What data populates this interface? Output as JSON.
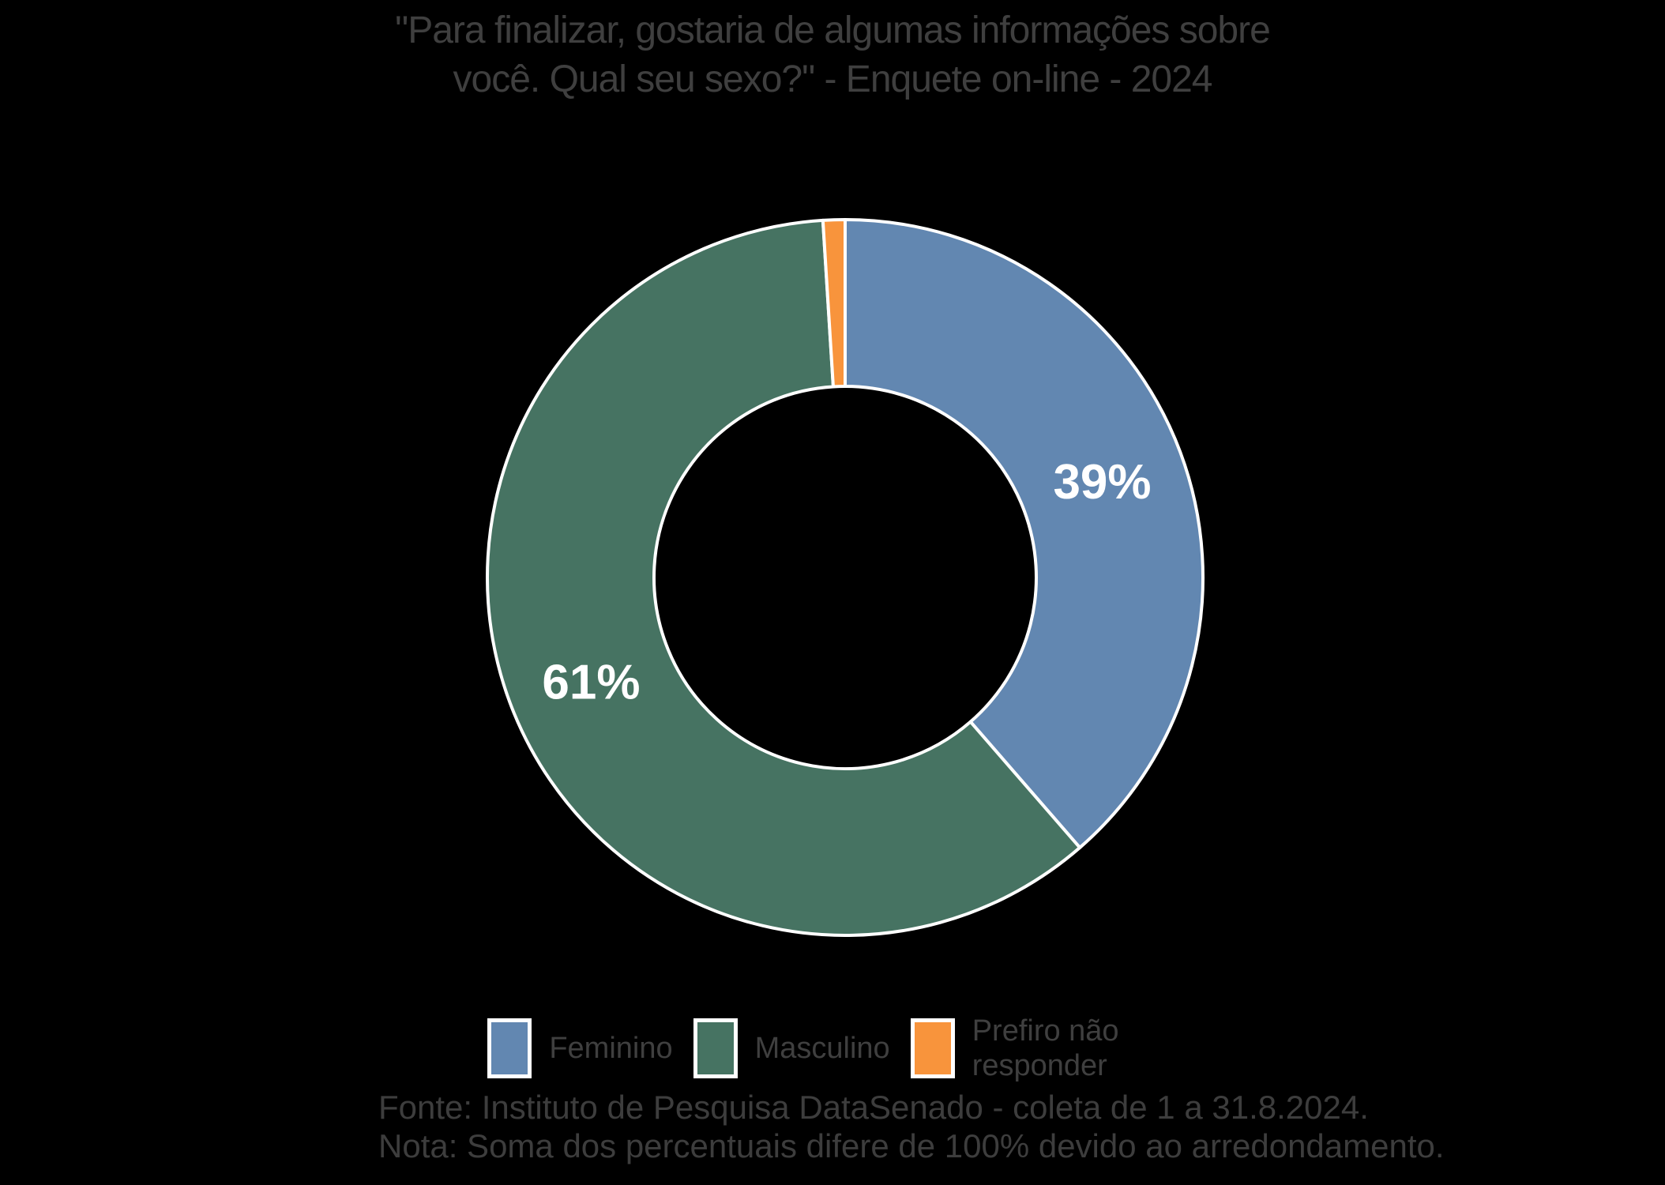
{
  "page": {
    "background": "#000000"
  },
  "title": {
    "text": "\"Para finalizar, gostaria de algumas informações sobre você. Qual seu sexo?\" - Enquete on-line - 2024",
    "color": "#3F3F3F"
  },
  "chart_data": {
    "type": "pie",
    "subtype": "donut",
    "title": "\"Para finalizar, gostaria de algumas informações sobre você. Qual seu sexo?\" - Enquete on-line - 2024",
    "categories": [
      "Feminino",
      "Masculino",
      "Prefiro não responder"
    ],
    "values": [
      39,
      61,
      1
    ],
    "unit": "%",
    "data_labels": [
      "39%",
      "61%",
      ""
    ],
    "colors": [
      "#6287B1",
      "#467362",
      "#F8943C"
    ],
    "slice_border_color": "#FFFFFF",
    "data_label_color": "#FFFFFF",
    "hole_ratio": 0.53,
    "start_position": "12-oclock",
    "direction": "clockwise",
    "legend_position": "bottom",
    "min_pct_for_label": 5
  },
  "legend": {
    "items": [
      {
        "label": "Feminino",
        "color": "#6287B1"
      },
      {
        "label": "Masculino",
        "color": "#467362"
      },
      {
        "label": "Prefiro não responder",
        "color": "#F8943C"
      }
    ]
  },
  "footer": {
    "source": "Fonte: Instituto de Pesquisa DataSenado - coleta de 1 a 31.8.2024.",
    "note": "Nota: Soma dos percentuais difere de 100% devido ao arredondamento."
  }
}
